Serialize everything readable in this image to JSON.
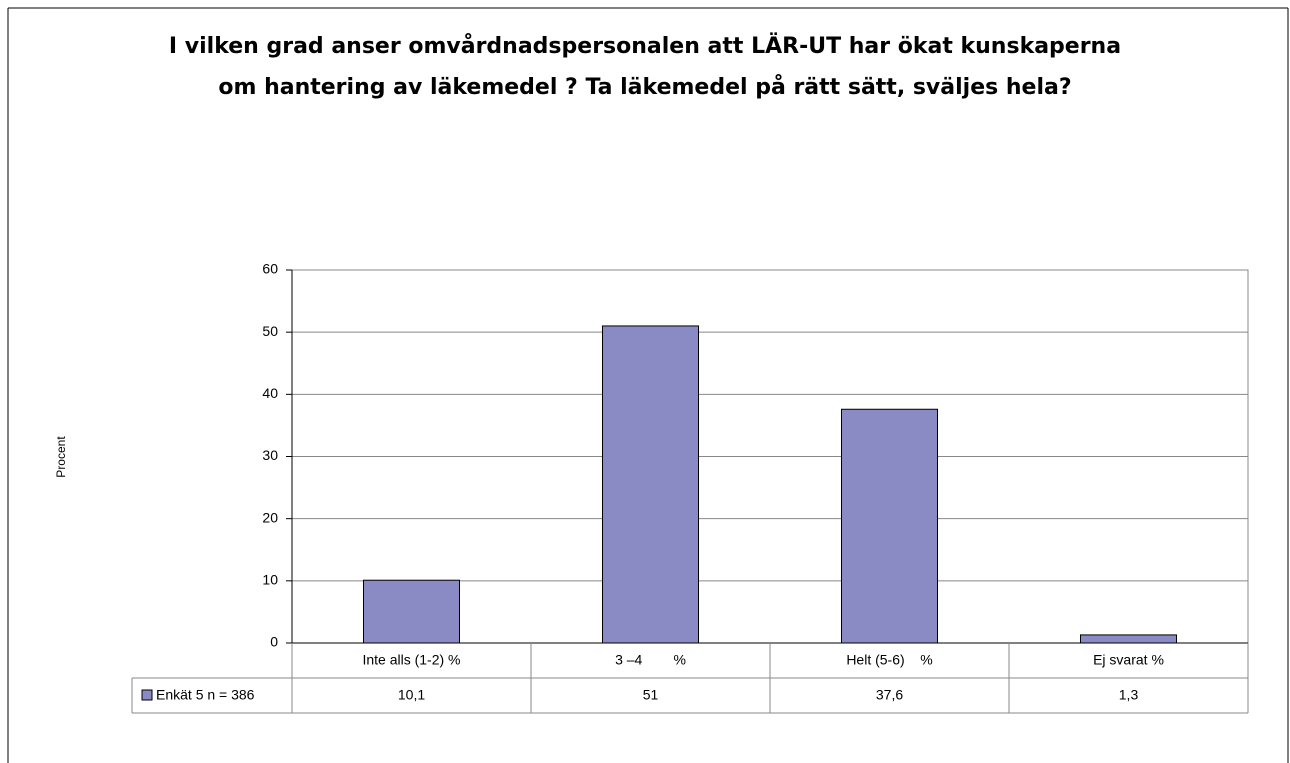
{
  "chart_data": {
    "type": "bar",
    "title": [
      "I vilken grad anser omvårdnadspersonalen att LÄR-UT har ökat kunskaperna",
      "om hantering av läkemedel ? Ta läkemedel på rätt sätt, sväljes hela?"
    ],
    "ylabel": "Procent",
    "categories": [
      "Inte alls (1-2) %",
      "3 –4        %",
      "Helt (5-6)    %",
      "Ej svarat %"
    ],
    "series": [
      {
        "name": "Enkät 5 n = 386",
        "color": "#8a8ac4",
        "values": [
          10.1,
          51,
          37.6,
          1.3
        ],
        "value_labels": [
          "10,1",
          "51",
          "37,6",
          "1,3"
        ]
      }
    ],
    "ylim": [
      0,
      60
    ],
    "yticks": [
      0,
      10,
      20,
      30,
      40,
      50,
      60
    ],
    "grid": true
  }
}
